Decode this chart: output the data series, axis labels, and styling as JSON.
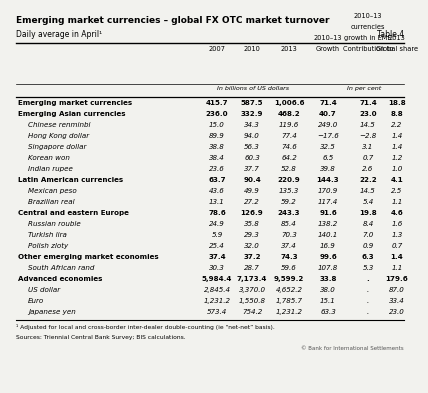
{
  "title": "Emerging market currencies – global FX OTC market turnover",
  "subtitle": "Daily average in April¹",
  "table_label": "Table 4",
  "col_headers": [
    "2007",
    "2010",
    "2013",
    "Growth\n2010–13",
    "Contribution to\ngrowth in EME\ncurrencies\n2010–13",
    "Global share\n2013"
  ],
  "subheader_left": "In billions of US dollars",
  "subheader_right": "In per cent",
  "rows": [
    {
      "label": "Emerging market currencies",
      "indent": 0,
      "bold": true,
      "italic": false,
      "vals": [
        "415.7",
        "587.5",
        "1,006.6",
        "71.4",
        "71.4",
        "18.8"
      ]
    },
    {
      "label": "Emerging Asian currencies",
      "indent": 0,
      "bold": true,
      "italic": false,
      "vals": [
        "236.0",
        "332.9",
        "468.2",
        "40.7",
        "23.0",
        "8.8"
      ]
    },
    {
      "label": "Chinese renminbi",
      "indent": 1,
      "bold": false,
      "italic": true,
      "vals": [
        "15.0",
        "34.3",
        "119.6",
        "249.0",
        "14.5",
        "2.2"
      ]
    },
    {
      "label": "Hong Kong dollar",
      "indent": 1,
      "bold": false,
      "italic": true,
      "vals": [
        "89.9",
        "94.0",
        "77.4",
        "−17.6",
        "−2.8",
        "1.4"
      ]
    },
    {
      "label": "Singapore dollar",
      "indent": 1,
      "bold": false,
      "italic": true,
      "vals": [
        "38.8",
        "56.3",
        "74.6",
        "32.5",
        "3.1",
        "1.4"
      ]
    },
    {
      "label": "Korean won",
      "indent": 1,
      "bold": false,
      "italic": true,
      "vals": [
        "38.4",
        "60.3",
        "64.2",
        "6.5",
        "0.7",
        "1.2"
      ]
    },
    {
      "label": "Indian rupee",
      "indent": 1,
      "bold": false,
      "italic": true,
      "vals": [
        "23.6",
        "37.7",
        "52.8",
        "39.8",
        "2.6",
        "1.0"
      ]
    },
    {
      "label": "Latin American currencies",
      "indent": 0,
      "bold": true,
      "italic": false,
      "vals": [
        "63.7",
        "90.4",
        "220.9",
        "144.3",
        "22.2",
        "4.1"
      ]
    },
    {
      "label": "Mexican peso",
      "indent": 1,
      "bold": false,
      "italic": true,
      "vals": [
        "43.6",
        "49.9",
        "135.3",
        "170.9",
        "14.5",
        "2.5"
      ]
    },
    {
      "label": "Brazilian real",
      "indent": 1,
      "bold": false,
      "italic": true,
      "vals": [
        "13.1",
        "27.2",
        "59.2",
        "117.4",
        "5.4",
        "1.1"
      ]
    },
    {
      "label": "Central and eastern Europe",
      "indent": 0,
      "bold": true,
      "italic": false,
      "vals": [
        "78.6",
        "126.9",
        "243.3",
        "91.6",
        "19.8",
        "4.6"
      ]
    },
    {
      "label": "Russian rouble",
      "indent": 1,
      "bold": false,
      "italic": true,
      "vals": [
        "24.9",
        "35.8",
        "85.4",
        "138.2",
        "8.4",
        "1.6"
      ]
    },
    {
      "label": "Turkish lira",
      "indent": 1,
      "bold": false,
      "italic": true,
      "vals": [
        "5.9",
        "29.3",
        "70.3",
        "140.1",
        "7.0",
        "1.3"
      ]
    },
    {
      "label": "Polish zloty",
      "indent": 1,
      "bold": false,
      "italic": true,
      "vals": [
        "25.4",
        "32.0",
        "37.4",
        "16.9",
        "0.9",
        "0.7"
      ]
    },
    {
      "label": "Other emerging market economies",
      "indent": 0,
      "bold": true,
      "italic": false,
      "vals": [
        "37.4",
        "37.2",
        "74.3",
        "99.6",
        "6.3",
        "1.4"
      ]
    },
    {
      "label": "South African rand",
      "indent": 1,
      "bold": false,
      "italic": true,
      "vals": [
        "30.3",
        "28.7",
        "59.6",
        "107.8",
        "5.3",
        "1.1"
      ]
    },
    {
      "label": "Advanced economies",
      "indent": 0,
      "bold": true,
      "italic": false,
      "vals": [
        "5,984.4",
        "7,173.4",
        "9,599.2",
        "33.8",
        ".",
        "179.6"
      ]
    },
    {
      "label": "US dollar",
      "indent": 1,
      "bold": false,
      "italic": true,
      "vals": [
        "2,845.4",
        "3,370.0",
        "4,652.2",
        "38.0",
        ".",
        "87.0"
      ]
    },
    {
      "label": "Euro",
      "indent": 1,
      "bold": false,
      "italic": true,
      "vals": [
        "1,231.2",
        "1,550.8",
        "1,785.7",
        "15.1",
        ".",
        "33.4"
      ]
    },
    {
      "label": "Japanese yen",
      "indent": 1,
      "bold": false,
      "italic": true,
      "vals": [
        "573.4",
        "754.2",
        "1,231.2",
        "63.3",
        ".",
        "23.0"
      ]
    }
  ],
  "footnote1": "¹ Adjusted for local and cross-border inter-dealer double-counting (ie “net-net” basis).",
  "footnote2": "Sources: Triennial Central Bank Survey; BIS calculations.",
  "footer_right": "© Bank for International Settlements",
  "bg_color": "#f2f2ee"
}
